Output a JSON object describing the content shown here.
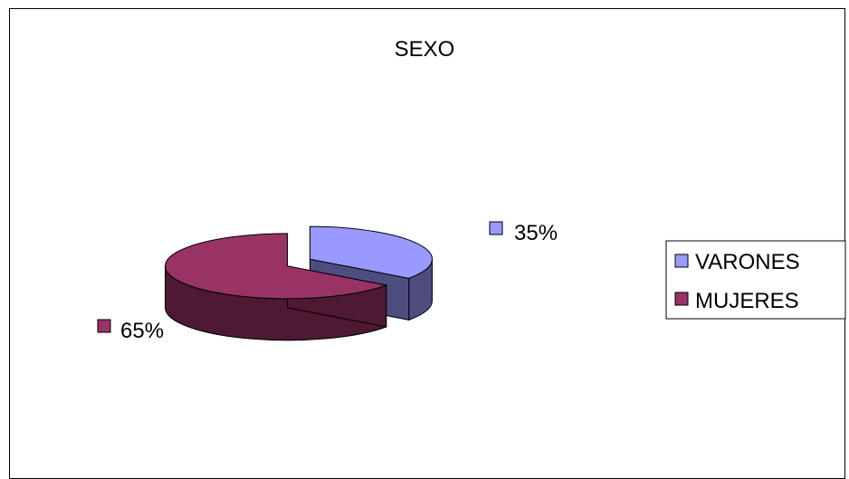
{
  "chart_data": {
    "type": "pie",
    "title": "SEXO",
    "categories": [
      "VARONES",
      "MUJERES"
    ],
    "values": [
      35,
      65
    ],
    "value_labels": [
      "35%",
      "65%"
    ],
    "colors": {
      "VARONES": {
        "top": "#9999ff",
        "side": "#4d4d80"
      },
      "MUJERES": {
        "top": "#993366",
        "side": "#4d1933"
      }
    },
    "style": "3d-exploded",
    "legend": {
      "position": "right",
      "entries": [
        "VARONES",
        "MUJERES"
      ]
    }
  }
}
